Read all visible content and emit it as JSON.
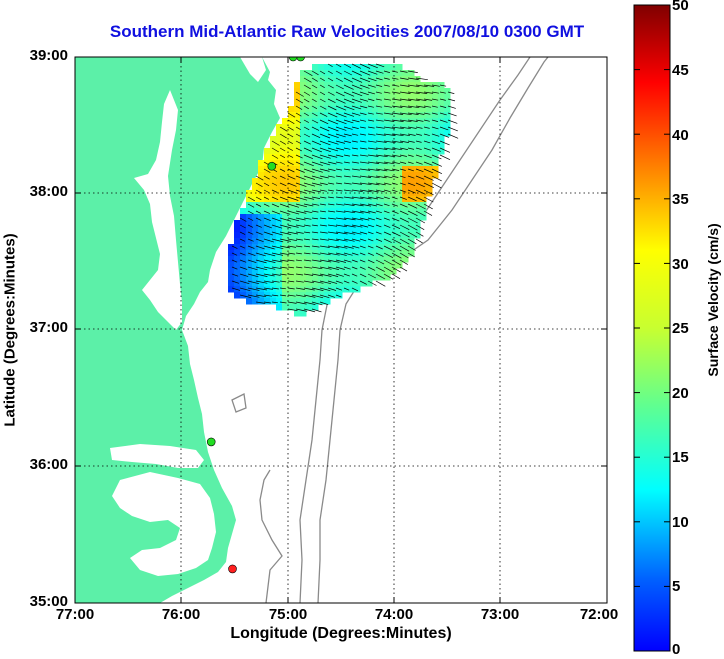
{
  "title": "Southern Mid-Atlantic Raw Velocities 2007/08/10 0300 GMT",
  "x_axis_label": "Longitude (Degrees:Minutes)",
  "y_axis_label": "Latitude (Degrees:Minutes)",
  "x_ticks": [
    "77:00",
    "76:00",
    "75:00",
    "74:00",
    "73:00",
    "72:00"
  ],
  "y_ticks": [
    "39:00",
    "38:00",
    "37:00",
    "36:00",
    "35:00"
  ],
  "colorbar": {
    "label": "Surface Velocity (cm/s)",
    "ticks": [
      "50",
      "45",
      "40",
      "35",
      "30",
      "25",
      "20",
      "15",
      "10",
      "5",
      "0"
    ],
    "min": 0,
    "max": 50,
    "colormap": "jet"
  },
  "colors": {
    "land": "#5cf0a8",
    "water": "#ffffff",
    "bathymetry_contour": "#8a8a8a",
    "title": "#1010e0",
    "station_green": "#22dd22",
    "station_red": "#ff2020"
  },
  "map": {
    "lon_range": [
      -77,
      -72
    ],
    "lat_range": [
      35,
      39
    ],
    "grid": true,
    "stations": [
      {
        "lon": -74.88,
        "lat": 39.0,
        "status": "green"
      },
      {
        "lon": -74.95,
        "lat": 39.0,
        "status": "green"
      },
      {
        "lon": -75.15,
        "lat": 38.2,
        "status": "green"
      },
      {
        "lon": -75.72,
        "lat": 36.18,
        "status": "green"
      },
      {
        "lon": -75.52,
        "lat": 35.25,
        "status": "red"
      }
    ]
  }
}
